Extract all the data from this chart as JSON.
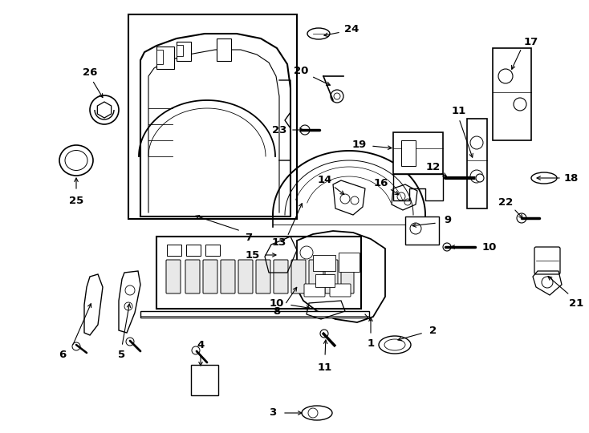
{
  "bg": "#ffffff",
  "lc": "#000000",
  "fw": 7.34,
  "fh": 5.4,
  "dpi": 100,
  "fs": 9.5,
  "xlim": [
    0,
    734
  ],
  "ylim": [
    0,
    540
  ]
}
